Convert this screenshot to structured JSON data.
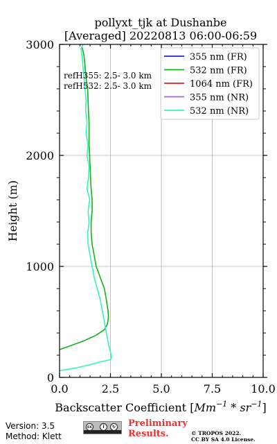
{
  "chart_data": {
    "type": "line",
    "title_line1": "pollyxt_tjk at Dushanbe",
    "title_line2": "[Averaged] 20220813 06:00-06:59",
    "xlabel": "Backscatter Coefficient [",
    "xlabel_unit": "Mm",
    "xlabel_exp1": "−1",
    "xlabel_mid": " * sr",
    "xlabel_exp2": "−1",
    "xlabel_end": "]",
    "ylabel": "Height (m)",
    "xlim": [
      0,
      10
    ],
    "ylim": [
      0,
      3000
    ],
    "x_ticks": [
      "0.0",
      "2.5",
      "5.0",
      "7.5",
      "10.0"
    ],
    "x_tick_values": [
      0,
      2.5,
      5,
      7.5,
      10
    ],
    "y_ticks": [
      "0",
      "1000",
      "2000",
      "3000"
    ],
    "y_tick_values": [
      0,
      1000,
      2000,
      3000
    ],
    "grid": true,
    "legend_position": "top-right",
    "annotations": [
      "refH355:  2.5- 3.0 km",
      "refH532:  2.5- 3.0 km"
    ],
    "series": [
      {
        "name": "355 nm (FR)",
        "color": "#1f1fdd",
        "points": []
      },
      {
        "name": "532 nm (FR)",
        "color": "#16b016",
        "points": [
          [
            0.0,
            250
          ],
          [
            0.6,
            290
          ],
          [
            1.2,
            330
          ],
          [
            1.8,
            380
          ],
          [
            2.2,
            430
          ],
          [
            2.35,
            480
          ],
          [
            2.4,
            540
          ],
          [
            2.38,
            600
          ],
          [
            2.3,
            700
          ],
          [
            2.2,
            800
          ],
          [
            2.0,
            900
          ],
          [
            1.8,
            1000
          ],
          [
            1.7,
            1100
          ],
          [
            1.6,
            1200
          ],
          [
            1.55,
            1300
          ],
          [
            1.55,
            1400
          ],
          [
            1.6,
            1500
          ],
          [
            1.6,
            1600
          ],
          [
            1.55,
            1700
          ],
          [
            1.52,
            1800
          ],
          [
            1.5,
            1900
          ],
          [
            1.48,
            2000
          ],
          [
            1.45,
            2100
          ],
          [
            1.45,
            2200
          ],
          [
            1.45,
            2300
          ],
          [
            1.42,
            2400
          ],
          [
            1.4,
            2500
          ],
          [
            1.38,
            2600
          ],
          [
            1.3,
            2700
          ],
          [
            1.25,
            2800
          ],
          [
            1.2,
            2900
          ],
          [
            1.1,
            2980
          ]
        ]
      },
      {
        "name": "1064 nm (FR)",
        "color": "#dd1f1f",
        "points": []
      },
      {
        "name": "355 nm (NR)",
        "color": "#b25ae0",
        "points": []
      },
      {
        "name": "532 nm (NR)",
        "color": "#37f2c0",
        "points": [
          [
            0.0,
            60
          ],
          [
            0.3,
            70
          ],
          [
            0.8,
            85
          ],
          [
            1.4,
            110
          ],
          [
            2.0,
            140
          ],
          [
            2.5,
            160
          ],
          [
            2.55,
            180
          ],
          [
            2.5,
            230
          ],
          [
            2.4,
            300
          ],
          [
            2.3,
            400
          ],
          [
            2.2,
            500
          ],
          [
            2.1,
            600
          ],
          [
            2.0,
            700
          ],
          [
            1.85,
            800
          ],
          [
            1.7,
            900
          ],
          [
            1.6,
            1000
          ],
          [
            1.5,
            1100
          ],
          [
            1.4,
            1200
          ],
          [
            1.38,
            1300
          ],
          [
            1.45,
            1400
          ],
          [
            1.4,
            1500
          ],
          [
            1.48,
            1600
          ],
          [
            1.35,
            1700
          ],
          [
            1.42,
            1800
          ],
          [
            1.45,
            1900
          ],
          [
            1.35,
            2000
          ],
          [
            1.4,
            2100
          ],
          [
            1.3,
            2200
          ],
          [
            1.35,
            2300
          ],
          [
            1.28,
            2400
          ],
          [
            1.3,
            2500
          ],
          [
            1.25,
            2600
          ],
          [
            1.2,
            2700
          ],
          [
            1.15,
            2800
          ],
          [
            1.1,
            2900
          ],
          [
            1.05,
            2960
          ],
          [
            1.15,
            3000
          ]
        ]
      }
    ]
  },
  "footer": {
    "version": "Version: 3.5",
    "method": "Method: Klett",
    "preliminary_line1": "Preliminary",
    "preliminary_line2": "Results.",
    "copyright_line1": "© TROPOS 2022.",
    "copyright_line2": "CC BY SA 4.0 License.",
    "license_logo_text": "cc BY SA"
  }
}
